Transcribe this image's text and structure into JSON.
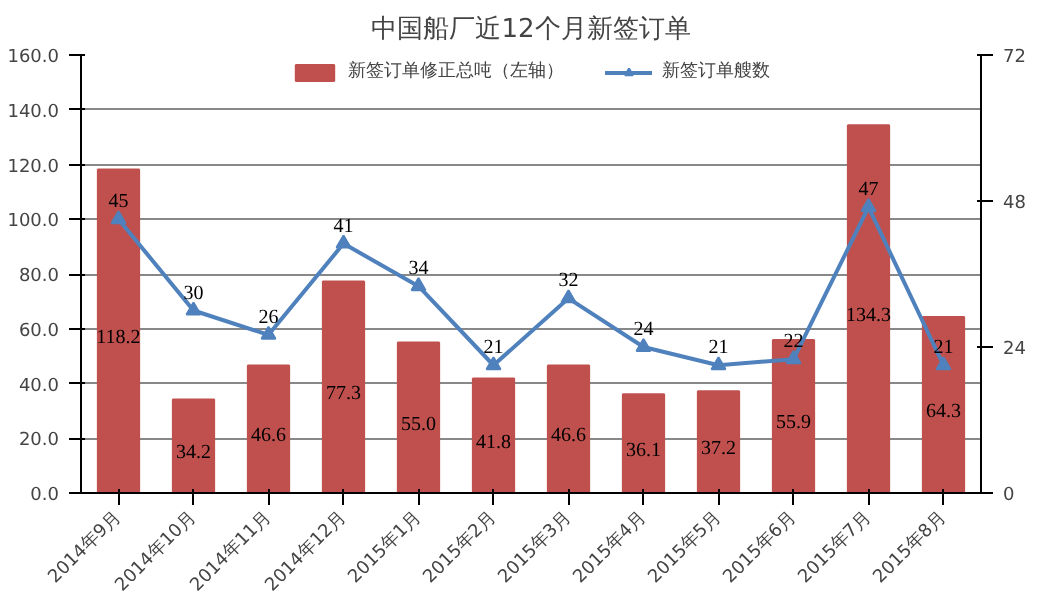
{
  "chart_data": {
    "type": "bar",
    "title": "中国船厂近12个月新签订单",
    "categories": [
      "2014年9月",
      "2014年10月",
      "2014年11月",
      "2014年12月",
      "2015年1月",
      "2015年2月",
      "2015年3月",
      "2015年4月",
      "2015年5月",
      "2015年6月",
      "2015年7月",
      "2015年8月"
    ],
    "series": [
      {
        "name": "新签订单修正总吨（左轴）",
        "color": "#c0504d",
        "values": [
          118.2,
          34.2,
          46.6,
          77.3,
          55.0,
          41.8,
          46.6,
          36.1,
          37.2,
          55.9,
          134.3,
          64.3
        ],
        "value_labels": [
          "118.2",
          "34.2",
          "46.6",
          "77.3",
          "55.0",
          "41.8",
          "46.6",
          "36.1",
          "37.2",
          "55.9",
          "134.3",
          "64.3"
        ]
      },
      {
        "name": "新签订单艘数",
        "type": "line",
        "axis": "y2",
        "color": "#4f81bd",
        "marker": "triangle",
        "values": [
          45,
          30,
          26,
          41,
          34,
          21,
          32,
          24,
          21,
          22,
          47,
          21
        ]
      }
    ],
    "ylim": [
      0,
      160
    ],
    "yticks": [
      {
        "value": 0,
        "label": "0.0"
      },
      {
        "value": 20,
        "label": "20.0"
      },
      {
        "value": 40,
        "label": "40.0"
      },
      {
        "value": 60,
        "label": "60.0"
      },
      {
        "value": 80,
        "label": "80.0"
      },
      {
        "value": 100,
        "label": "100.0"
      },
      {
        "value": 120,
        "label": "120.0"
      },
      {
        "value": 140,
        "label": "140.0"
      },
      {
        "value": 160,
        "label": "160.0"
      }
    ],
    "y2lim": [
      0,
      72
    ],
    "y2ticks": [
      0,
      24,
      48,
      72
    ],
    "grid": "y",
    "legend": "top",
    "data_labels": true
  }
}
